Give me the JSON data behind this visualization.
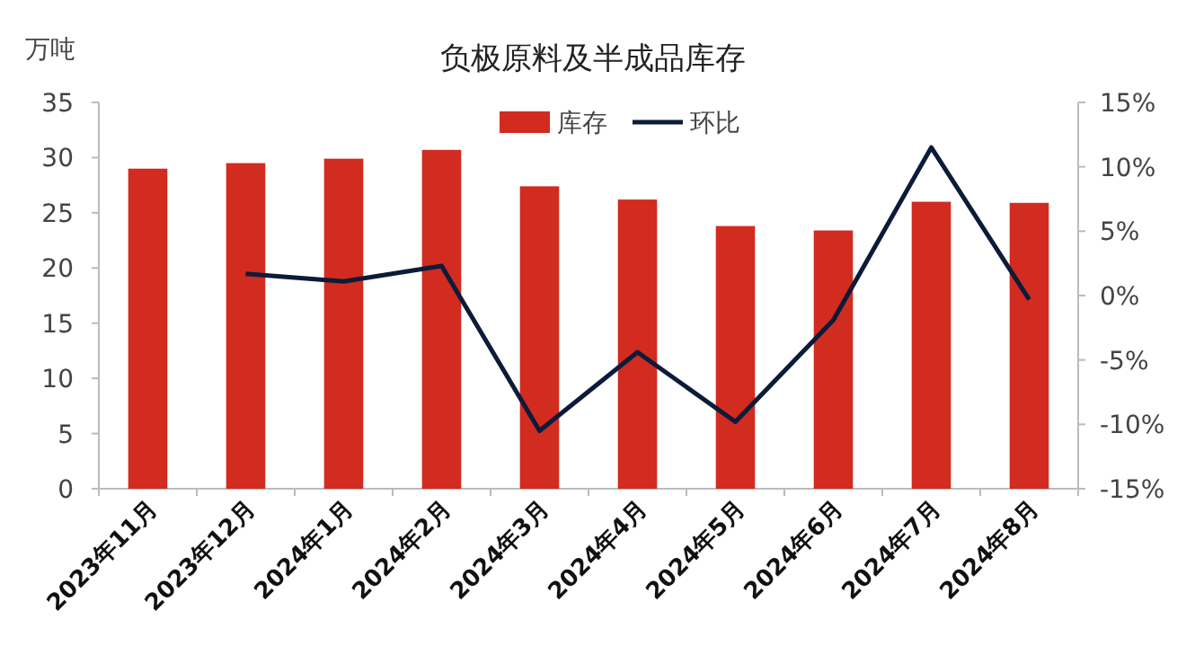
{
  "chart_data": {
    "type": "bar",
    "title": "负极原料及半成品库存",
    "ylabel": "万吨",
    "categories": [
      "2023年11月",
      "2023年12月",
      "2024年1月",
      "2024年2月",
      "2024年3月",
      "2024年4月",
      "2024年5月",
      "2024年6月",
      "2024年7月",
      "2024年8月"
    ],
    "series": [
      {
        "name": "库存",
        "color": "#d22b1f",
        "values": [
          29.0,
          29.5,
          29.9,
          30.7,
          27.4,
          26.2,
          23.8,
          23.4,
          26.0,
          25.9
        ]
      },
      {
        "name": "环比",
        "type": "line",
        "axis": "y2",
        "color": "#0d1b3a",
        "values": [
          null,
          1.7,
          1.1,
          2.3,
          -10.5,
          -4.4,
          -9.8,
          -1.9,
          11.5,
          -0.3
        ]
      }
    ],
    "ylim": [
      0,
      35
    ],
    "yticks": [
      0,
      5,
      10,
      15,
      20,
      25,
      30,
      35
    ],
    "y2lim": [
      -15,
      15
    ],
    "y2ticks": [
      {
        "value": -15,
        "label": "-15%"
      },
      {
        "value": -10,
        "label": "-10%"
      },
      {
        "value": -5,
        "label": "-5%"
      },
      {
        "value": 0,
        "label": "0%"
      },
      {
        "value": 5,
        "label": "5%"
      },
      {
        "value": 10,
        "label": "10%"
      },
      {
        "value": 15,
        "label": "15%"
      }
    ],
    "legend": "top",
    "grid": false,
    "marker": "none",
    "line_style": "solid"
  }
}
